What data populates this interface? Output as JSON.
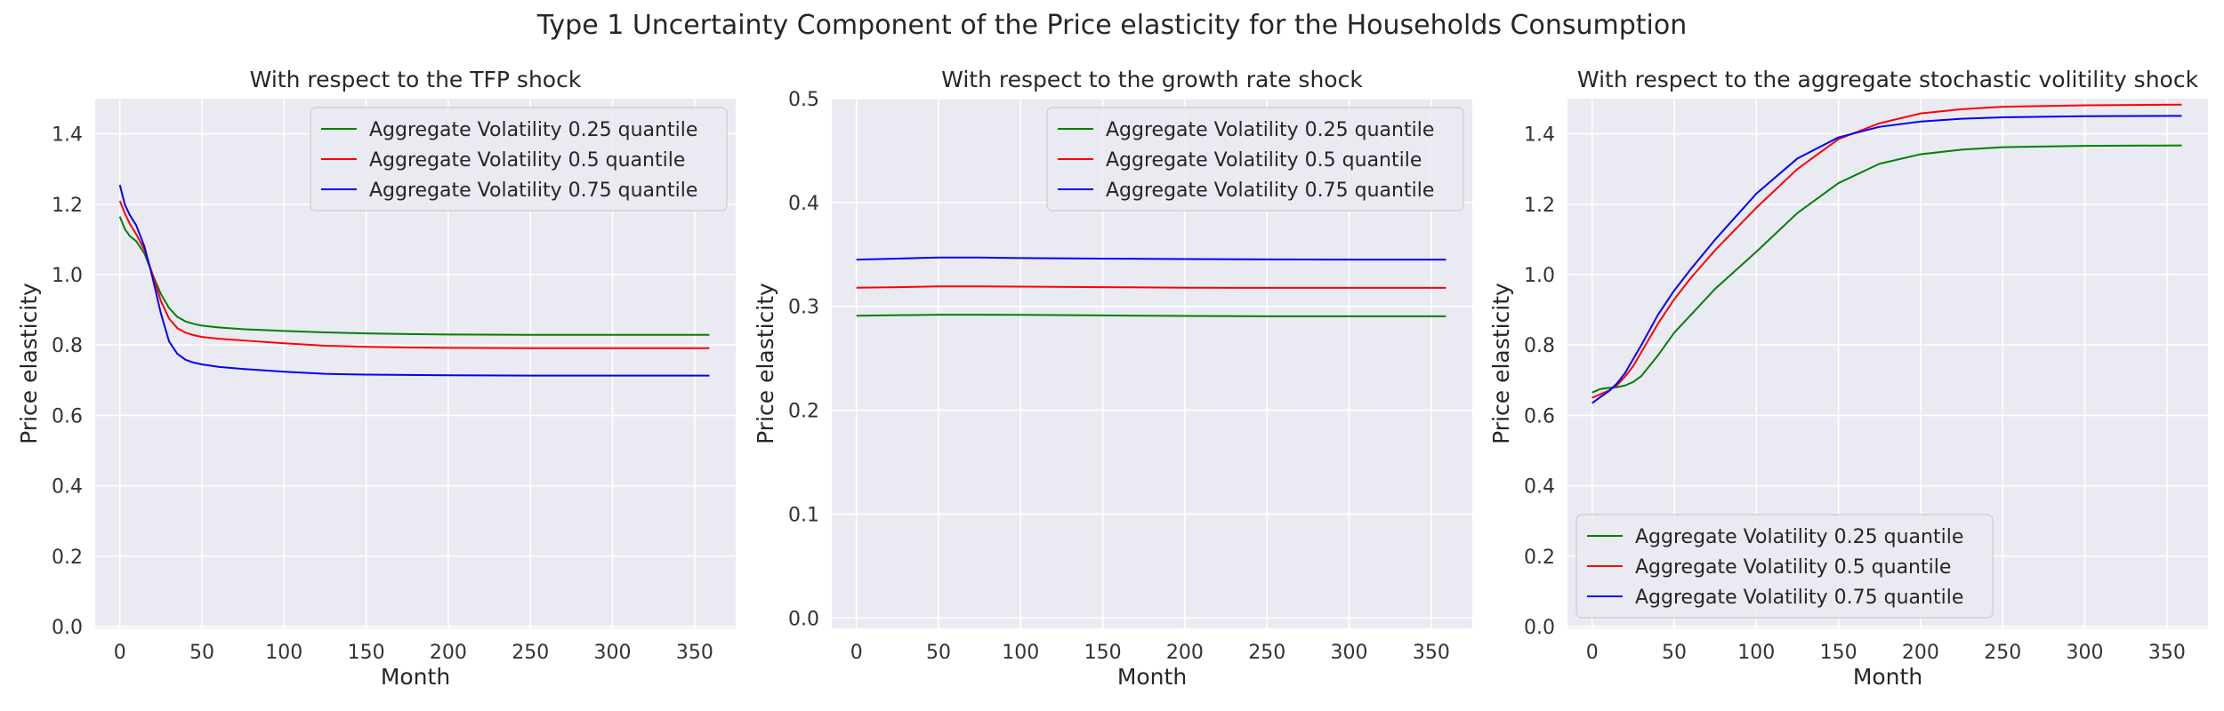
{
  "figure": {
    "suptitle": "Type 1 Uncertainty Component of the Price elasticity for the Households Consumption"
  },
  "chart_data": [
    {
      "type": "line",
      "title": "With respect to the TFP shock",
      "xlabel": "Month",
      "ylabel": "Price elasticity",
      "xlim": [
        -15,
        375
      ],
      "ylim": [
        -0.005,
        1.5
      ],
      "xticks": [
        0,
        50,
        100,
        150,
        200,
        250,
        300,
        350
      ],
      "yticks": [
        0.0,
        0.2,
        0.4,
        0.6,
        0.8,
        1.0,
        1.2,
        1.4
      ],
      "grid": true,
      "legend_position": "upper right",
      "x": [
        0,
        3,
        6,
        10,
        15,
        20,
        25,
        30,
        35,
        40,
        45,
        50,
        60,
        75,
        100,
        125,
        150,
        175,
        200,
        250,
        300,
        359
      ],
      "series": [
        {
          "name": "Aggregate Volatility 0.25 quantile",
          "color": "#008000",
          "values": [
            1.165,
            1.13,
            1.11,
            1.095,
            1.06,
            1.0,
            0.945,
            0.905,
            0.88,
            0.867,
            0.86,
            0.855,
            0.85,
            0.845,
            0.84,
            0.836,
            0.833,
            0.831,
            0.83,
            0.829,
            0.829,
            0.829
          ]
        },
        {
          "name": "Aggregate Volatility 0.5 quantile",
          "color": "#ff0000",
          "values": [
            1.21,
            1.175,
            1.145,
            1.115,
            1.07,
            1.0,
            0.925,
            0.875,
            0.848,
            0.835,
            0.828,
            0.823,
            0.818,
            0.813,
            0.805,
            0.798,
            0.795,
            0.793,
            0.792,
            0.791,
            0.791,
            0.791
          ]
        },
        {
          "name": "Aggregate Volatility 0.75 quantile",
          "color": "#0000ff",
          "values": [
            1.255,
            1.2,
            1.17,
            1.14,
            1.08,
            0.99,
            0.89,
            0.81,
            0.775,
            0.758,
            0.75,
            0.745,
            0.738,
            0.732,
            0.724,
            0.718,
            0.716,
            0.715,
            0.714,
            0.713,
            0.713,
            0.713
          ]
        }
      ]
    },
    {
      "type": "line",
      "title": "With respect to the growth rate shock",
      "xlabel": "Month",
      "ylabel": "Price elasticity",
      "xlim": [
        -15,
        375
      ],
      "ylim": [
        -0.01,
        0.5
      ],
      "xticks": [
        0,
        50,
        100,
        150,
        200,
        250,
        300,
        350
      ],
      "yticks": [
        0.0,
        0.1,
        0.2,
        0.3,
        0.4,
        0.5
      ],
      "grid": true,
      "legend_position": "upper right",
      "x": [
        0,
        25,
        50,
        75,
        100,
        150,
        200,
        250,
        300,
        359
      ],
      "series": [
        {
          "name": "Aggregate Volatility 0.25 quantile",
          "color": "#008000",
          "values": [
            0.291,
            0.2915,
            0.292,
            0.292,
            0.2918,
            0.2913,
            0.2908,
            0.2905,
            0.2905,
            0.2905
          ]
        },
        {
          "name": "Aggregate Volatility 0.5 quantile",
          "color": "#ff0000",
          "values": [
            0.318,
            0.3185,
            0.3192,
            0.3192,
            0.319,
            0.3185,
            0.318,
            0.3178,
            0.3178,
            0.3178
          ]
        },
        {
          "name": "Aggregate Volatility 0.75 quantile",
          "color": "#0000ff",
          "values": [
            0.345,
            0.346,
            0.347,
            0.347,
            0.3465,
            0.346,
            0.3455,
            0.3452,
            0.345,
            0.345
          ]
        }
      ]
    },
    {
      "type": "line",
      "title": "With respect to the aggregate stochastic volitility shock",
      "xlabel": "Month",
      "ylabel": "Price elasticity",
      "xlim": [
        -15,
        375
      ],
      "ylim": [
        -0.005,
        1.5
      ],
      "xticks": [
        0,
        50,
        100,
        150,
        200,
        250,
        300,
        350
      ],
      "yticks": [
        0.0,
        0.2,
        0.4,
        0.6,
        0.8,
        1.0,
        1.2,
        1.4
      ],
      "grid": true,
      "legend_position": "lower left",
      "x": [
        0,
        5,
        10,
        15,
        20,
        25,
        30,
        40,
        50,
        60,
        75,
        100,
        125,
        150,
        175,
        200,
        225,
        250,
        300,
        359
      ],
      "series": [
        {
          "name": "Aggregate Volatility 0.25 quantile",
          "color": "#008000",
          "values": [
            0.665,
            0.675,
            0.678,
            0.68,
            0.685,
            0.695,
            0.712,
            0.77,
            0.835,
            0.885,
            0.96,
            1.065,
            1.175,
            1.26,
            1.315,
            1.342,
            1.355,
            1.362,
            1.366,
            1.367
          ]
        },
        {
          "name": "Aggregate Volatility 0.5 quantile",
          "color": "#ff0000",
          "values": [
            0.65,
            0.66,
            0.67,
            0.685,
            0.71,
            0.74,
            0.78,
            0.86,
            0.93,
            0.99,
            1.07,
            1.19,
            1.3,
            1.385,
            1.43,
            1.458,
            1.47,
            1.477,
            1.481,
            1.483
          ]
        },
        {
          "name": "Aggregate Volatility 0.75 quantile",
          "color": "#0000ff",
          "values": [
            0.635,
            0.652,
            0.668,
            0.69,
            0.72,
            0.76,
            0.8,
            0.885,
            0.955,
            1.015,
            1.1,
            1.23,
            1.33,
            1.39,
            1.42,
            1.435,
            1.443,
            1.447,
            1.45,
            1.451
          ]
        }
      ]
    }
  ]
}
